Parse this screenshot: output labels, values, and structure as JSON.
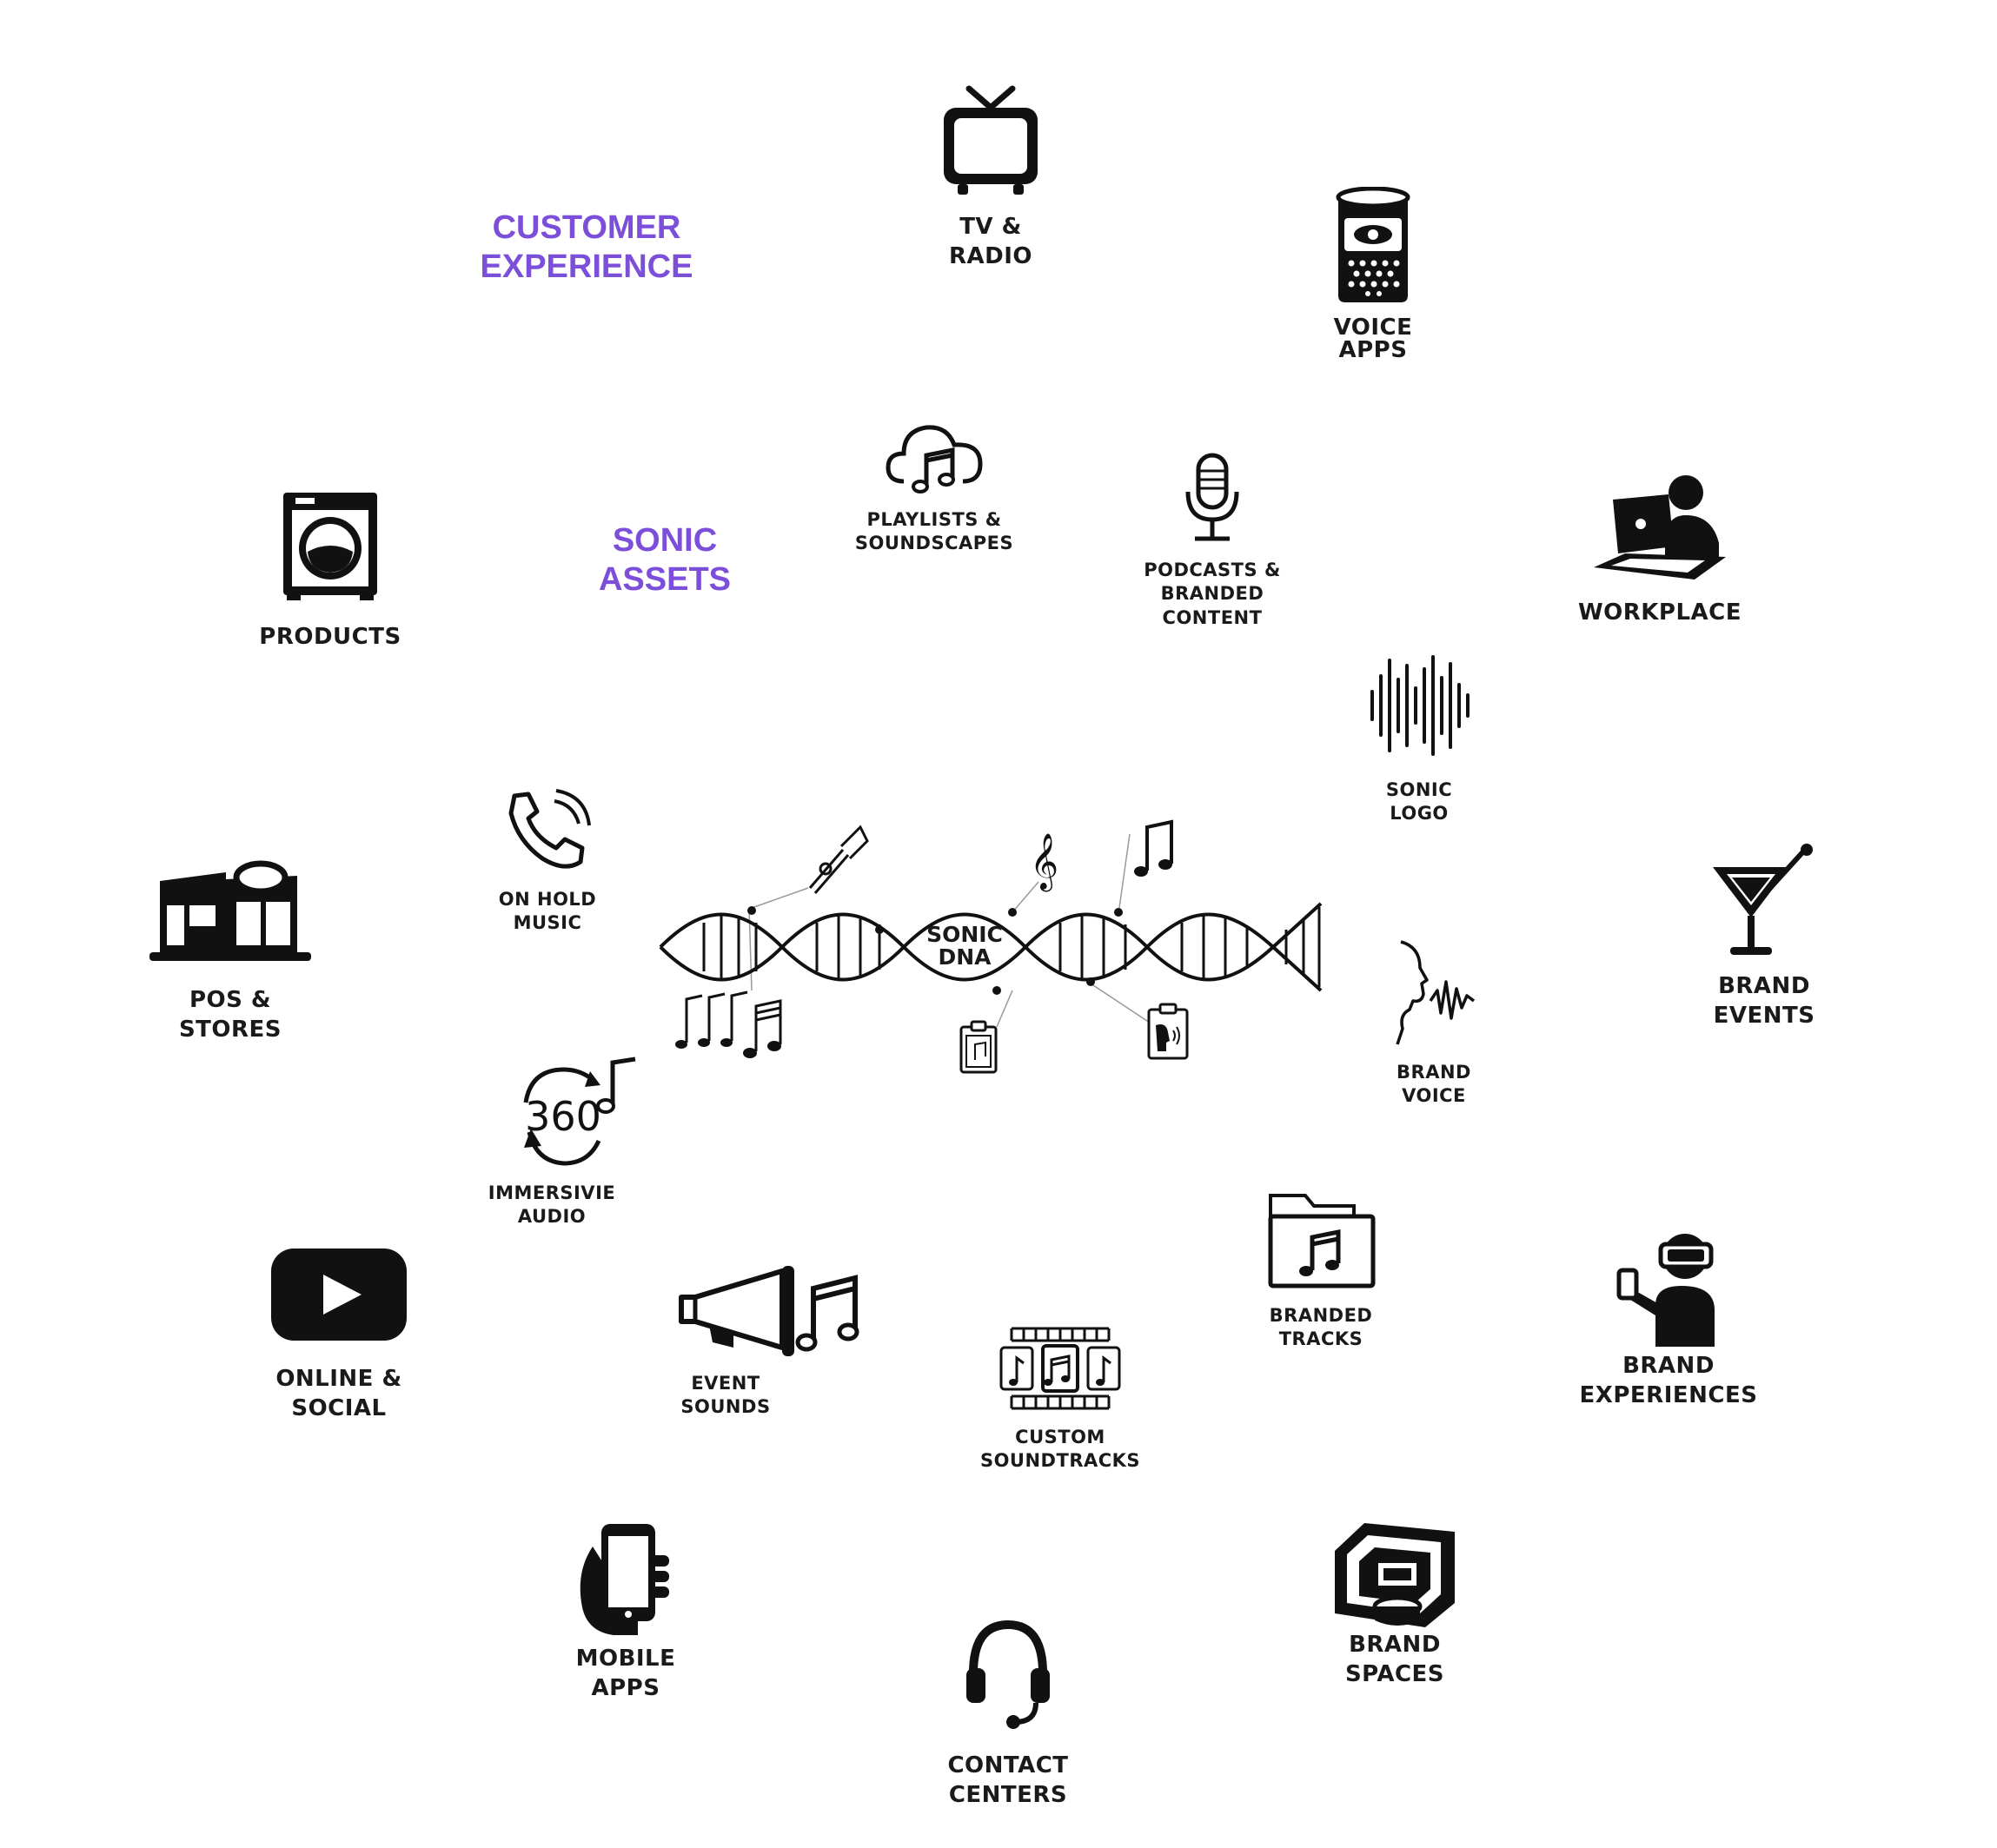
{
  "sections": {
    "customer_experience": [
      "CUSTOMER",
      "EXPERIENCE"
    ],
    "sonic_assets": [
      "SONIC",
      "ASSETS"
    ]
  },
  "center": {
    "label": [
      "SONIC",
      "DNA"
    ]
  },
  "outer": {
    "tv_radio": [
      "TV &",
      "RADIO"
    ],
    "voice_apps": [
      "VOICE",
      "APPS"
    ],
    "workplace": [
      "WORKPLACE"
    ],
    "brand_events": [
      "BRAND",
      "EVENTS"
    ],
    "brand_experiences": [
      "BRAND",
      "EXPERIENCES"
    ],
    "brand_spaces": [
      "BRAND",
      "SPACES"
    ],
    "contact_centers": [
      "CONTACT",
      "CENTERS"
    ],
    "mobile_apps": [
      "MOBILE",
      "APPS"
    ],
    "online_social": [
      "ONLINE &",
      "SOCIAL"
    ],
    "pos_stores": [
      "POS &",
      "STORES"
    ],
    "products": [
      "PRODUCTS"
    ]
  },
  "inner": {
    "playlists": [
      "PLAYLISTS &",
      "SOUNDSCAPES"
    ],
    "podcasts": [
      "PODCASTS &",
      "BRANDED",
      "CONTENT"
    ],
    "sonic_logo": [
      "SONIC",
      "LOGO"
    ],
    "brand_voice": [
      "BRAND",
      "VOICE"
    ],
    "branded_tracks": [
      "BRANDED",
      "TRACKS"
    ],
    "custom_soundtracks": [
      "CUSTOM",
      "SOUNDTRACKS"
    ],
    "event_sounds": [
      "EVENT",
      "SOUNDS"
    ],
    "immersive_audio": [
      "IMMERSIVIE",
      "AUDIO"
    ],
    "on_hold_music": [
      "ON HOLD",
      "MUSIC"
    ],
    "immersive_badge": "360"
  },
  "icons": {
    "tv_radio": "tv-icon",
    "voice_apps": "smart-speaker-icon",
    "workplace": "laptop-user-icon",
    "brand_events": "cocktail-icon",
    "brand_experiences": "vr-headset-icon",
    "brand_spaces": "booth-icon",
    "contact_centers": "headset-icon",
    "mobile_apps": "mobile-phone-icon",
    "online_social": "video-play-icon",
    "pos_stores": "store-icon",
    "products": "washing-machine-icon",
    "playlists": "cloud-music-icon",
    "podcasts": "microphone-icon",
    "sonic_logo": "sound-wave-icon",
    "brand_voice": "speaking-head-icon",
    "branded_tracks": "music-folder-icon",
    "custom_soundtracks": "film-strip-icon",
    "event_sounds": "megaphone-icon",
    "immersive_audio": "rotate-360-icon",
    "on_hold_music": "phone-icon"
  },
  "colors": {
    "section_accent": "#7b4fd9",
    "icon": "#111111",
    "label": "#1a1a1a"
  }
}
